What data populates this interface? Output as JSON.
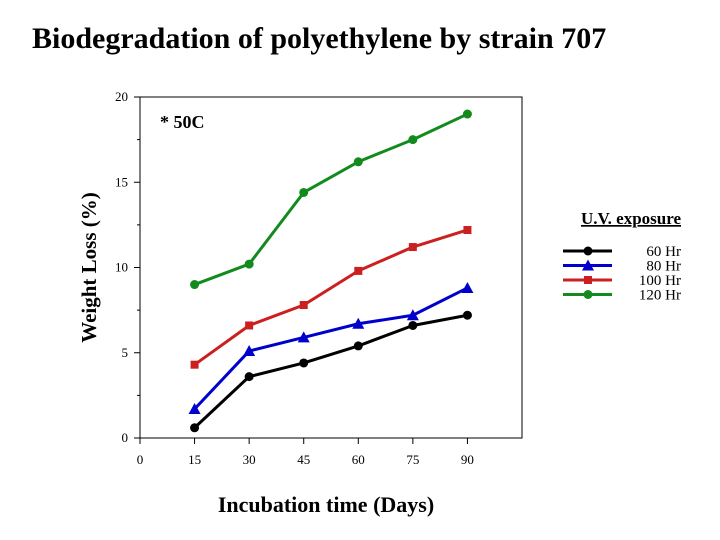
{
  "chart_data": {
    "type": "line",
    "title": "Biodegradation of polyethylene by strain 707",
    "xlabel": "Incubation time (Days)",
    "ylabel": "Weight Loss (%)",
    "annotation": "* 50C",
    "xlim": [
      0,
      105
    ],
    "ylim": [
      0,
      20
    ],
    "xticks": [
      0,
      15,
      30,
      45,
      60,
      75,
      90
    ],
    "yticks": [
      0,
      5,
      10,
      15,
      20
    ],
    "x": [
      15,
      30,
      45,
      60,
      75,
      90
    ],
    "legend_title": "U.V. exposure",
    "legend_position": "right",
    "series": [
      {
        "name": "60 Hr",
        "marker": "circle",
        "color": "#000000",
        "values": [
          0.6,
          3.6,
          4.4,
          5.4,
          6.6,
          7.2
        ]
      },
      {
        "name": "80 Hr",
        "marker": "triangle",
        "color": "#0000cc",
        "values": [
          1.7,
          5.1,
          5.9,
          6.7,
          7.2,
          8.8
        ]
      },
      {
        "name": "100 Hr",
        "marker": "square",
        "color": "#cc1f1f",
        "values": [
          4.3,
          6.6,
          7.8,
          9.8,
          11.2,
          12.2
        ]
      },
      {
        "name": "120 Hr",
        "marker": "circle",
        "color": "#128a1e",
        "values": [
          9.0,
          10.2,
          14.4,
          16.2,
          17.5,
          19.0
        ]
      }
    ]
  }
}
